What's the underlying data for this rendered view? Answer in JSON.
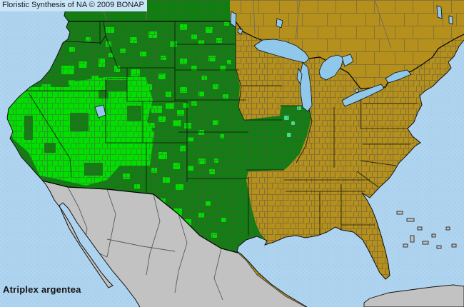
{
  "header": {
    "title": "Floristic Synthesis of NA © 2009 BONAP"
  },
  "footer": {
    "species": "Atriplex argentea"
  },
  "legend": {
    "state_present_color": "#117E11",
    "county_present_color": "#00DF00",
    "adventive_county_color": "#41DE8C",
    "absent_color": "#B5901C",
    "outside_flora_color": "#C2C2C2",
    "lake_color": "#8FC8EA",
    "ocean_color": "#AFD4F0",
    "ocean_dot_color": "#9DC6E5",
    "county_line_color": "#56564B",
    "border_color": "#111111"
  },
  "map": {
    "bright_polygon": "12,150 30,122 96,122 104,114 148,108 204,108 214,140 206,170 216,186 210,232 168,232 150,252 120,260 86,252 56,246 40,214 18,194 8,164",
    "dark_patches": [
      [
        34,
        162,
        12,
        34
      ],
      [
        98,
        158,
        26,
        26
      ],
      [
        148,
        112,
        30,
        16
      ],
      [
        178,
        148,
        20,
        22
      ],
      [
        118,
        228,
        26,
        18
      ],
      [
        62,
        200,
        16,
        14
      ],
      [
        138,
        126,
        14,
        12
      ]
    ],
    "bright_counties": [
      [
        50,
        56,
        14,
        9
      ],
      [
        76,
        46,
        9,
        7
      ],
      [
        97,
        66,
        8,
        7
      ],
      [
        120,
        52,
        7,
        6
      ],
      [
        86,
        92,
        18,
        12
      ],
      [
        110,
        86,
        12,
        9
      ],
      [
        58,
        118,
        13,
        8
      ],
      [
        128,
        106,
        10,
        8
      ],
      [
        96,
        112,
        9,
        7
      ],
      [
        138,
        82,
        9,
        12
      ],
      [
        148,
        58,
        8,
        8
      ],
      [
        160,
        92,
        8,
        9
      ],
      [
        152,
        74,
        7,
        6
      ],
      [
        148,
        38,
        12,
        8
      ],
      [
        182,
        52,
        10,
        8
      ],
      [
        208,
        44,
        12,
        9
      ],
      [
        238,
        58,
        10,
        8
      ],
      [
        168,
        68,
        8,
        6
      ],
      [
        196,
        72,
        9,
        7
      ],
      [
        225,
        78,
        8,
        6
      ],
      [
        183,
        97,
        13,
        10
      ],
      [
        203,
        118,
        10,
        8
      ],
      [
        222,
        103,
        10,
        8
      ],
      [
        232,
        128,
        8,
        8
      ],
      [
        192,
        125,
        8,
        7
      ],
      [
        212,
        148,
        15,
        10
      ],
      [
        232,
        144,
        12,
        9
      ],
      [
        248,
        154,
        10,
        8
      ],
      [
        222,
        163,
        10,
        8
      ],
      [
        242,
        168,
        12,
        9
      ],
      [
        256,
        144,
        8,
        7
      ],
      [
        208,
        172,
        9,
        7
      ],
      [
        222,
        213,
        12,
        10
      ],
      [
        242,
        228,
        10,
        9
      ],
      [
        252,
        204,
        8,
        8
      ],
      [
        228,
        248,
        10,
        8
      ],
      [
        246,
        258,
        11,
        8
      ],
      [
        212,
        235,
        8,
        7
      ],
      [
        172,
        243,
        10,
        8
      ],
      [
        188,
        258,
        8,
        7
      ],
      [
        252,
        34,
        10,
        8
      ],
      [
        268,
        48,
        8,
        7
      ],
      [
        288,
        38,
        10,
        8
      ],
      [
        303,
        53,
        8,
        7
      ],
      [
        314,
        30,
        7,
        6
      ],
      [
        278,
        56,
        8,
        6
      ],
      [
        252,
        82,
        10,
        8
      ],
      [
        268,
        92,
        8,
        7
      ],
      [
        292,
        78,
        10,
        8
      ],
      [
        308,
        92,
        8,
        7
      ],
      [
        282,
        106,
        8,
        6
      ],
      [
        318,
        84,
        6,
        6
      ],
      [
        252,
        122,
        10,
        8
      ],
      [
        278,
        128,
        8,
        7
      ],
      [
        298,
        118,
        8,
        7
      ],
      [
        312,
        132,
        8,
        6
      ],
      [
        268,
        142,
        8,
        6
      ],
      [
        258,
        172,
        10,
        8
      ],
      [
        278,
        182,
        8,
        7
      ],
      [
        298,
        168,
        8,
        7
      ],
      [
        263,
        192,
        8,
        6
      ],
      [
        308,
        188,
        6,
        6
      ],
      [
        278,
        222,
        10,
        8
      ],
      [
        293,
        237,
        8,
        7
      ],
      [
        263,
        232,
        8,
        7
      ],
      [
        300,
        222,
        6,
        6
      ],
      [
        222,
        278,
        10,
        8
      ],
      [
        243,
        292,
        12,
        10
      ],
      [
        258,
        307,
        10,
        8
      ],
      [
        233,
        312,
        8,
        7
      ],
      [
        278,
        298,
        8,
        7
      ],
      [
        296,
        326,
        8,
        7
      ],
      [
        288,
        282,
        7,
        6
      ],
      [
        310,
        305,
        7,
        6
      ]
    ],
    "teal_counties": [
      [
        398,
        162,
        7,
        6
      ],
      [
        402,
        186,
        6,
        6
      ],
      [
        416,
        149,
        6,
        5
      ],
      [
        408,
        170,
        5,
        5
      ]
    ]
  }
}
